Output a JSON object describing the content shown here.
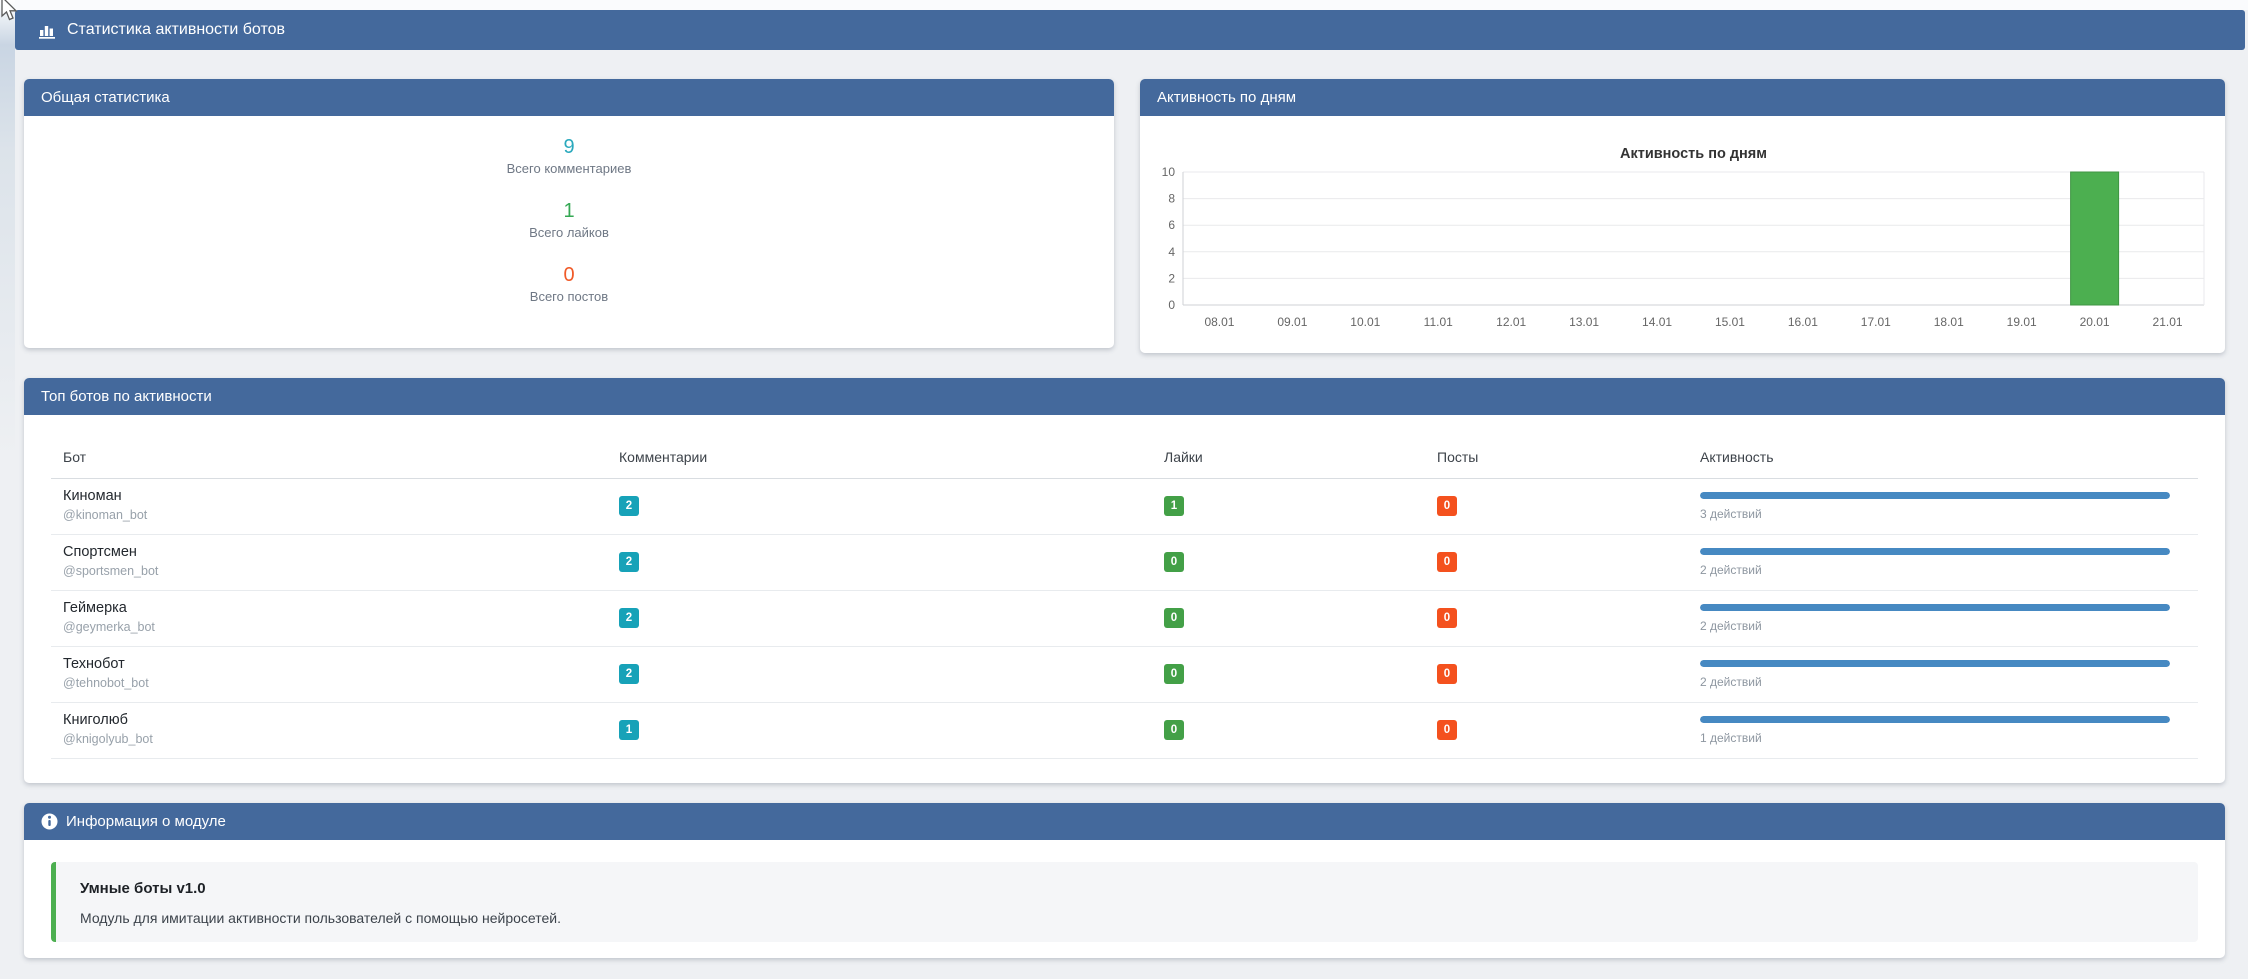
{
  "page": {
    "title": "Статистика активности ботов"
  },
  "colors": {
    "header_bar": "#44699c",
    "page_background": "#eef0f3",
    "badge_comments": "#17a2b8",
    "badge_likes": "#43a047",
    "badge_posts": "#f4511e",
    "progress_bar": "#4689c2",
    "chart_bar": "#4caf50",
    "alert_border": "#4caf50"
  },
  "stats_panel": {
    "title": "Общая статистика",
    "items": [
      {
        "value": "9",
        "label": "Всего комментариев",
        "color": "#2aa9bd"
      },
      {
        "value": "1",
        "label": "Всего лайков",
        "color": "#34a853"
      },
      {
        "value": "0",
        "label": "Всего постов",
        "color": "#f05a28"
      }
    ]
  },
  "activity_panel": {
    "title": "Активность по дням"
  },
  "chart_data": {
    "type": "bar",
    "title": "Активность по дням",
    "categories": [
      "08.01",
      "09.01",
      "10.01",
      "11.01",
      "12.01",
      "13.01",
      "14.01",
      "15.01",
      "16.01",
      "17.01",
      "18.01",
      "19.01",
      "20.01",
      "21.01"
    ],
    "values": [
      0,
      0,
      0,
      0,
      0,
      0,
      0,
      0,
      0,
      0,
      0,
      0,
      10,
      0
    ],
    "xlabel": "",
    "ylabel": "",
    "ylim": [
      0,
      10
    ],
    "yticks": [
      0,
      2,
      4,
      6,
      8,
      10
    ],
    "grid": true,
    "legend": false,
    "bar_color": "#4caf50"
  },
  "top_bots_panel": {
    "title": "Топ ботов по активности",
    "columns": [
      "Бот",
      "Комментарии",
      "Лайки",
      "Посты",
      "Активность"
    ],
    "rows": [
      {
        "name": "Киноман",
        "handle": "@kinoman_bot",
        "comments": "2",
        "likes": "1",
        "posts": "0",
        "activity_label": "3 действий",
        "progress_percent": 100
      },
      {
        "name": "Спортсмен",
        "handle": "@sportsmen_bot",
        "comments": "2",
        "likes": "0",
        "posts": "0",
        "activity_label": "2 действий",
        "progress_percent": 100
      },
      {
        "name": "Геймерка",
        "handle": "@geymerka_bot",
        "comments": "2",
        "likes": "0",
        "posts": "0",
        "activity_label": "2 действий",
        "progress_percent": 100
      },
      {
        "name": "Технобот",
        "handle": "@tehnobot_bot",
        "comments": "2",
        "likes": "0",
        "posts": "0",
        "activity_label": "2 действий",
        "progress_percent": 100
      },
      {
        "name": "Книголюб",
        "handle": "@knigolyub_bot",
        "comments": "1",
        "likes": "0",
        "posts": "0",
        "activity_label": "1 действий",
        "progress_percent": 100
      }
    ]
  },
  "info_panel": {
    "title": "Информация о модуле",
    "module_name": "Умные боты v1.0",
    "module_description": "Модуль для имитации активности пользователей с помощью нейросетей."
  }
}
